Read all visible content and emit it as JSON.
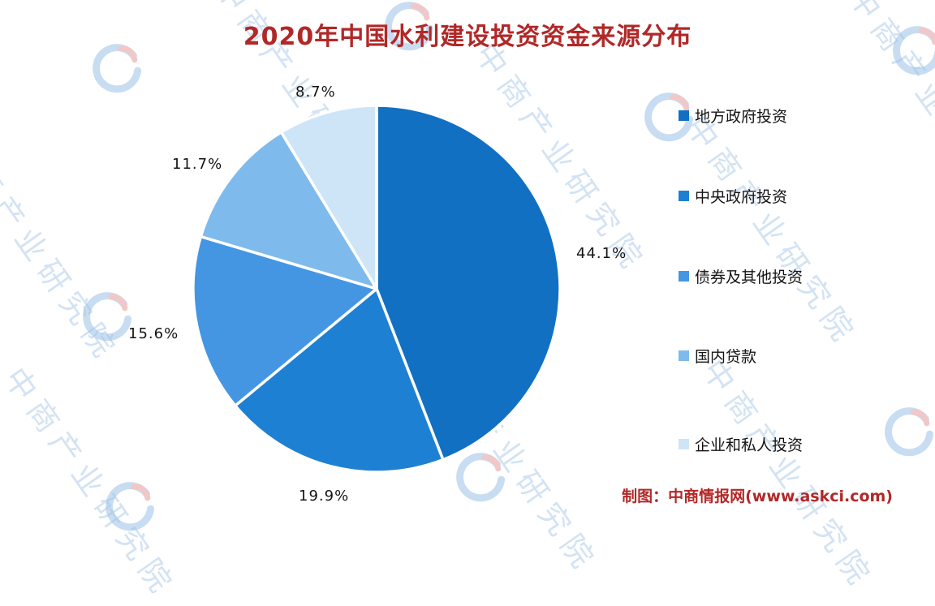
{
  "title": "2020年中国水利建设投资资金来源分布",
  "watermark": {
    "text": "中商产业研究院"
  },
  "footer": {
    "credit": "制图：中商情报网(www.askci.com)"
  },
  "chart_data": {
    "type": "pie",
    "title": "2020年中国水利建设投资资金来源分布",
    "start_angle_deg": -90,
    "direction": "clockwise",
    "legend_position": "right",
    "slices": [
      {
        "name": "地方政府投资",
        "value": 44.1,
        "label": "44.1%",
        "color": "#1270c2"
      },
      {
        "name": "中央政府投资",
        "value": 19.9,
        "label": "19.9%",
        "color": "#1e80d2"
      },
      {
        "name": "债券及其他投资",
        "value": 15.6,
        "label": "15.6%",
        "color": "#4496e2"
      },
      {
        "name": "国内贷款",
        "value": 11.7,
        "label": "11.7%",
        "color": "#7fbaec"
      },
      {
        "name": "企业和私人投资",
        "value": 8.7,
        "label": "8.7%",
        "color": "#cde5f7"
      }
    ]
  }
}
